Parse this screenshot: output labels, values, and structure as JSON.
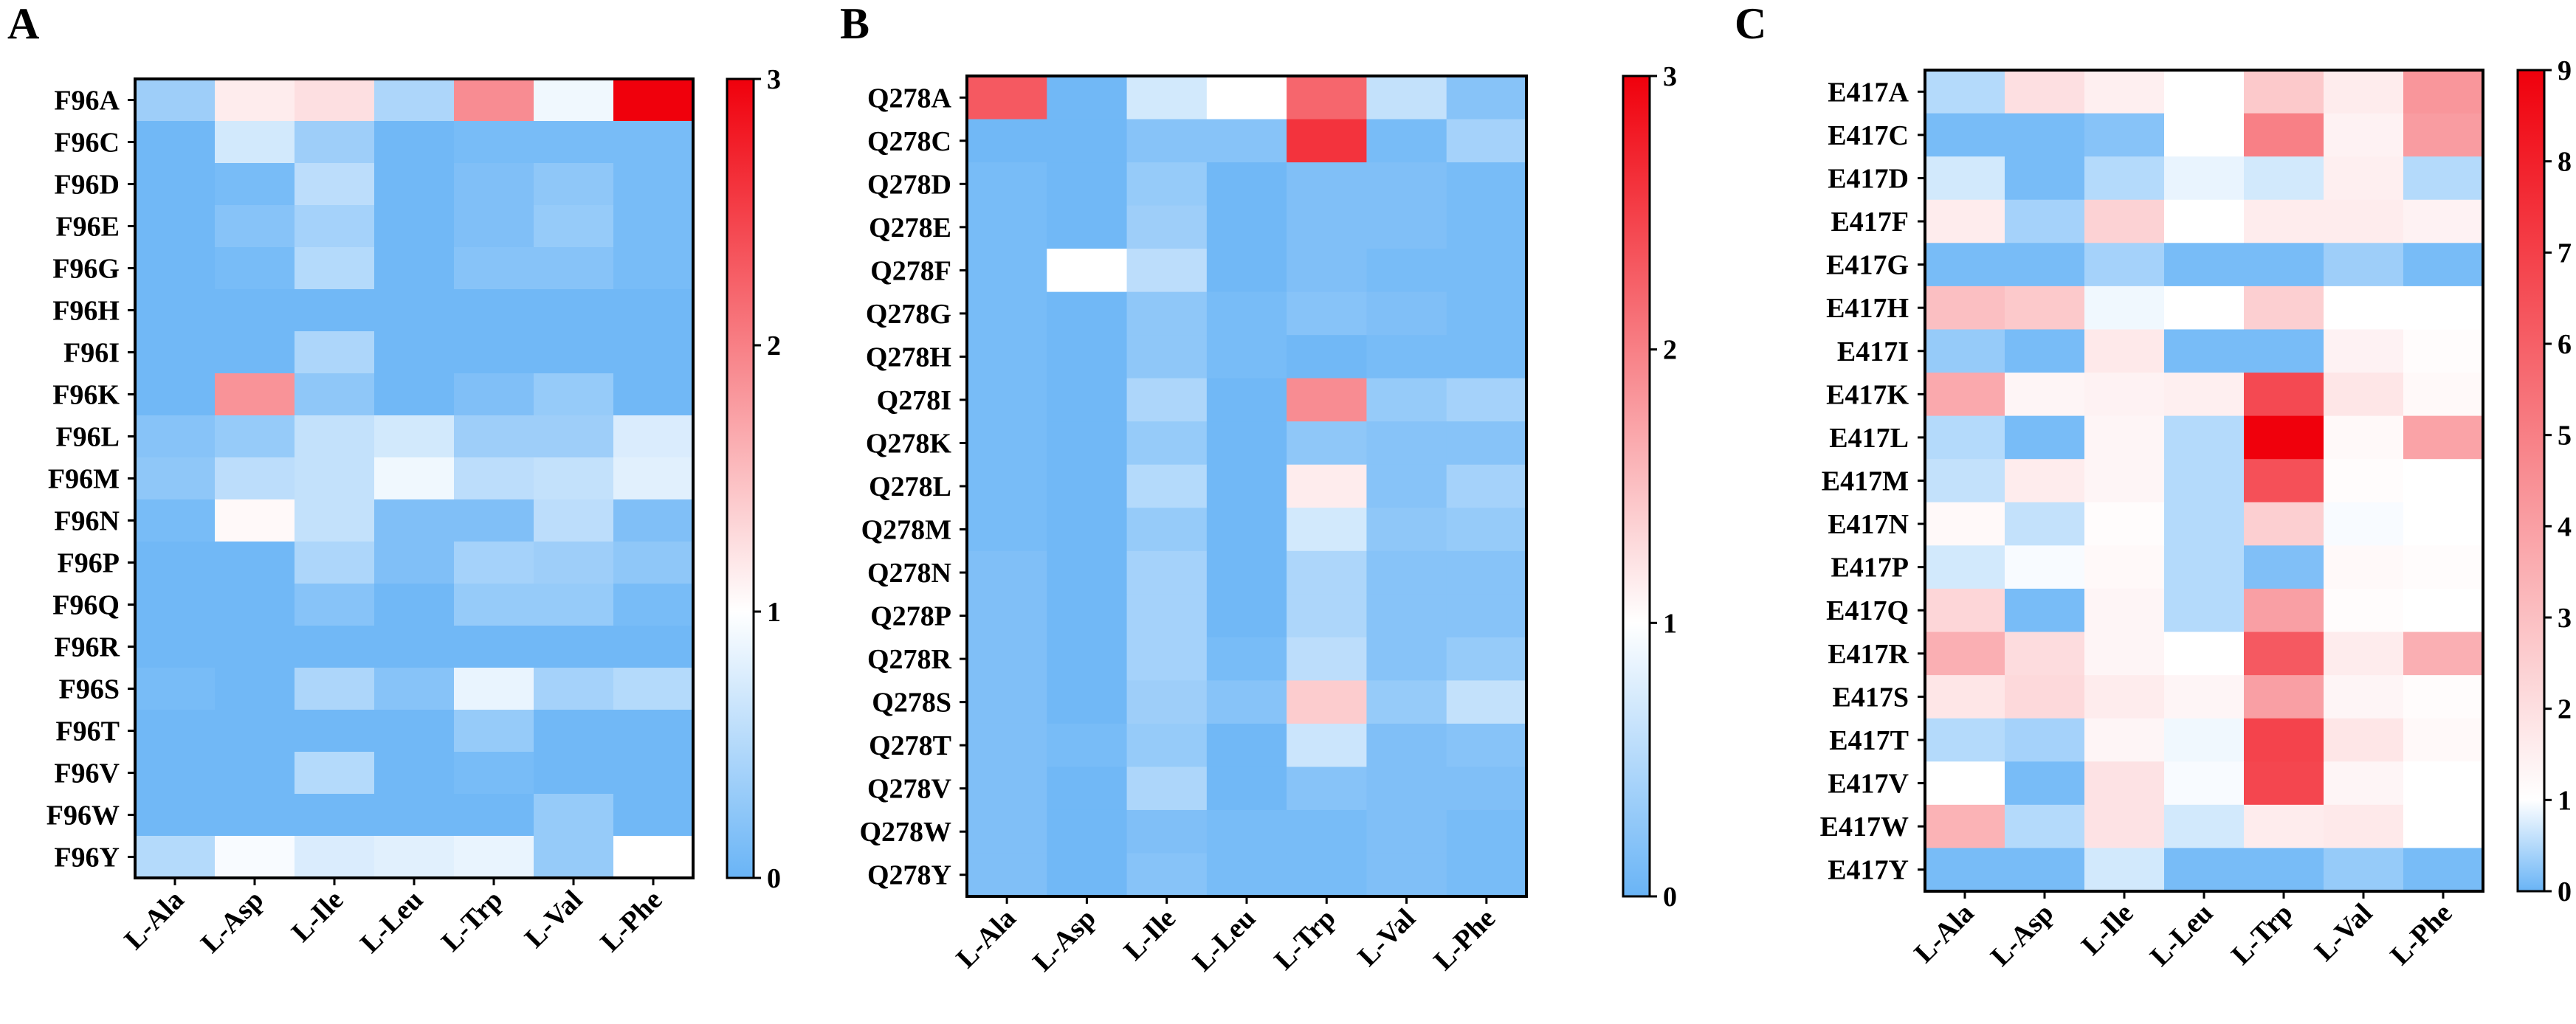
{
  "colors": {
    "low": "#69b4f6",
    "mid": "#ffffff",
    "high": "#f0000c",
    "frame": "#000000"
  },
  "chart_data": [
    {
      "type": "heatmap",
      "panel_label": "A",
      "title": "",
      "xlabel": "",
      "ylabel": "",
      "columns": [
        "L-Ala",
        "L-Asp",
        "L-Ile",
        "L-Leu",
        "L-Trp",
        "L-Val",
        "L-Phe"
      ],
      "rows": [
        "F96A",
        "F96C",
        "F96D",
        "F96E",
        "F96G",
        "F96H",
        "F96I",
        "F96K",
        "F96L",
        "F96M",
        "F96N",
        "F96P",
        "F96Q",
        "F96R",
        "F96S",
        "F96T",
        "F96V",
        "F96W",
        "F96Y"
      ],
      "colorbar": {
        "min": 0,
        "mid": 1,
        "max": 3,
        "ticks": [
          "0",
          "1",
          "2",
          "3"
        ]
      },
      "values": [
        [
          0.35,
          1.15,
          1.25,
          0.45,
          1.9,
          0.9,
          3.0
        ],
        [
          0.05,
          0.7,
          0.35,
          0.05,
          0.1,
          0.1,
          0.1
        ],
        [
          0.05,
          0.1,
          0.55,
          0.05,
          0.15,
          0.25,
          0.1
        ],
        [
          0.05,
          0.2,
          0.4,
          0.05,
          0.15,
          0.3,
          0.1
        ],
        [
          0.05,
          0.1,
          0.5,
          0.05,
          0.2,
          0.2,
          0.1
        ],
        [
          0.05,
          0.05,
          0.05,
          0.05,
          0.05,
          0.05,
          0.05
        ],
        [
          0.05,
          0.05,
          0.45,
          0.05,
          0.05,
          0.05,
          0.05
        ],
        [
          0.05,
          1.85,
          0.25,
          0.05,
          0.15,
          0.3,
          0.05
        ],
        [
          0.2,
          0.3,
          0.6,
          0.7,
          0.35,
          0.35,
          0.75
        ],
        [
          0.25,
          0.55,
          0.6,
          0.9,
          0.55,
          0.6,
          0.8
        ],
        [
          0.1,
          1.05,
          0.6,
          0.15,
          0.15,
          0.55,
          0.15
        ],
        [
          0.05,
          0.05,
          0.45,
          0.15,
          0.4,
          0.35,
          0.25
        ],
        [
          0.05,
          0.05,
          0.2,
          0.05,
          0.3,
          0.3,
          0.1
        ],
        [
          0.05,
          0.05,
          0.05,
          0.05,
          0.05,
          0.05,
          0.05
        ],
        [
          0.1,
          0.05,
          0.45,
          0.2,
          0.85,
          0.4,
          0.5
        ],
        [
          0.05,
          0.05,
          0.05,
          0.05,
          0.3,
          0.05,
          0.05
        ],
        [
          0.05,
          0.05,
          0.5,
          0.05,
          0.1,
          0.05,
          0.05
        ],
        [
          0.05,
          0.05,
          0.05,
          0.05,
          0.05,
          0.3,
          0.05
        ],
        [
          0.5,
          0.95,
          0.75,
          0.8,
          0.85,
          0.3,
          1.0
        ]
      ]
    },
    {
      "type": "heatmap",
      "panel_label": "B",
      "title": "",
      "xlabel": "",
      "ylabel": "",
      "columns": [
        "L-Ala",
        "L-Asp",
        "L-Ile",
        "L-Leu",
        "L-Trp",
        "L-Val",
        "L-Phe"
      ],
      "rows": [
        "Q278A",
        "Q278C",
        "Q278D",
        "Q278E",
        "Q278F",
        "Q278G",
        "Q278H",
        "Q278I",
        "Q278K",
        "Q278L",
        "Q278M",
        "Q278N",
        "Q278P",
        "Q278R",
        "Q278S",
        "Q278T",
        "Q278V",
        "Q278W",
        "Q278Y"
      ],
      "colorbar": {
        "min": 0,
        "mid": 1,
        "max": 3,
        "ticks": [
          "0",
          "1",
          "2",
          "3"
        ]
      },
      "values": [
        [
          2.3,
          0.05,
          0.7,
          1.0,
          2.2,
          0.6,
          0.2
        ],
        [
          0.05,
          0.05,
          0.2,
          0.2,
          2.6,
          0.1,
          0.4
        ],
        [
          0.1,
          0.05,
          0.3,
          0.05,
          0.15,
          0.15,
          0.1
        ],
        [
          0.1,
          0.05,
          0.35,
          0.05,
          0.15,
          0.15,
          0.1
        ],
        [
          0.1,
          1.0,
          0.55,
          0.05,
          0.15,
          0.1,
          0.1
        ],
        [
          0.1,
          0.05,
          0.25,
          0.1,
          0.2,
          0.15,
          0.1
        ],
        [
          0.1,
          0.05,
          0.25,
          0.1,
          0.05,
          0.1,
          0.1
        ],
        [
          0.1,
          0.05,
          0.45,
          0.05,
          1.9,
          0.3,
          0.4
        ],
        [
          0.1,
          0.05,
          0.3,
          0.05,
          0.25,
          0.2,
          0.2
        ],
        [
          0.1,
          0.05,
          0.5,
          0.05,
          1.15,
          0.2,
          0.4
        ],
        [
          0.1,
          0.05,
          0.3,
          0.05,
          0.7,
          0.25,
          0.3
        ],
        [
          0.15,
          0.05,
          0.4,
          0.05,
          0.45,
          0.2,
          0.2
        ],
        [
          0.15,
          0.05,
          0.4,
          0.05,
          0.45,
          0.2,
          0.2
        ],
        [
          0.15,
          0.05,
          0.4,
          0.1,
          0.55,
          0.2,
          0.3
        ],
        [
          0.15,
          0.05,
          0.35,
          0.2,
          1.4,
          0.3,
          0.6
        ],
        [
          0.15,
          0.1,
          0.3,
          0.05,
          0.65,
          0.15,
          0.2
        ],
        [
          0.15,
          0.05,
          0.45,
          0.05,
          0.2,
          0.15,
          0.15
        ],
        [
          0.15,
          0.05,
          0.15,
          0.1,
          0.1,
          0.15,
          0.1
        ],
        [
          0.15,
          0.05,
          0.2,
          0.1,
          0.1,
          0.15,
          0.1
        ]
      ]
    },
    {
      "type": "heatmap",
      "panel_label": "C",
      "title": "",
      "xlabel": "",
      "ylabel": "",
      "columns": [
        "L-Ala",
        "L-Asp",
        "L-Ile",
        "L-Leu",
        "L-Trp",
        "L-Val",
        "L-Phe"
      ],
      "rows": [
        "E417A",
        "E417C",
        "E417D",
        "E417F",
        "E417G",
        "E417H",
        "E417I",
        "E417K",
        "E417L",
        "E417M",
        "E417N",
        "E417P",
        "E417Q",
        "E417R",
        "E417S",
        "E417T",
        "E417V",
        "E417W",
        "E417Y"
      ],
      "colorbar": {
        "min": 0,
        "mid": 1,
        "max": 9,
        "ticks": [
          "0",
          "1",
          "2",
          "3",
          "4",
          "5",
          "6",
          "7",
          "8",
          "9"
        ]
      },
      "values": [
        [
          0.5,
          2.0,
          1.5,
          1.0,
          2.7,
          1.6,
          4.3
        ],
        [
          0.1,
          0.1,
          0.2,
          1.0,
          5.0,
          1.4,
          4.1
        ],
        [
          0.7,
          0.1,
          0.5,
          0.85,
          0.7,
          1.5,
          0.5
        ],
        [
          1.6,
          0.4,
          2.4,
          1.0,
          1.6,
          1.6,
          1.4
        ],
        [
          0.1,
          0.1,
          0.4,
          0.1,
          0.1,
          0.35,
          0.1
        ],
        [
          3.0,
          2.7,
          0.9,
          1.0,
          2.5,
          1.0,
          1.0
        ],
        [
          0.3,
          0.1,
          1.7,
          0.1,
          0.1,
          1.4,
          1.1
        ],
        [
          3.7,
          1.3,
          1.4,
          1.5,
          6.7,
          1.8,
          1.2
        ],
        [
          0.5,
          0.1,
          1.3,
          0.5,
          9.0,
          1.2,
          3.9
        ],
        [
          0.6,
          1.6,
          1.3,
          0.5,
          6.5,
          1.1,
          1.0
        ],
        [
          1.2,
          0.6,
          1.1,
          0.5,
          2.5,
          0.95,
          1.0
        ],
        [
          0.7,
          0.95,
          1.2,
          0.5,
          0.15,
          1.2,
          1.1
        ],
        [
          2.3,
          0.1,
          1.3,
          0.5,
          4.0,
          1.1,
          1.0
        ],
        [
          3.5,
          2.1,
          1.3,
          1.0,
          6.2,
          1.6,
          3.5
        ],
        [
          1.8,
          2.2,
          1.6,
          1.3,
          4.0,
          1.3,
          1.1
        ],
        [
          0.5,
          0.4,
          1.3,
          0.9,
          6.9,
          1.8,
          1.2
        ],
        [
          1.0,
          0.1,
          1.9,
          0.95,
          6.8,
          1.3,
          1.0
        ],
        [
          3.4,
          0.5,
          1.9,
          0.7,
          1.6,
          1.7,
          1.0
        ],
        [
          0.1,
          0.1,
          0.7,
          0.1,
          0.1,
          0.3,
          0.1
        ]
      ]
    }
  ]
}
